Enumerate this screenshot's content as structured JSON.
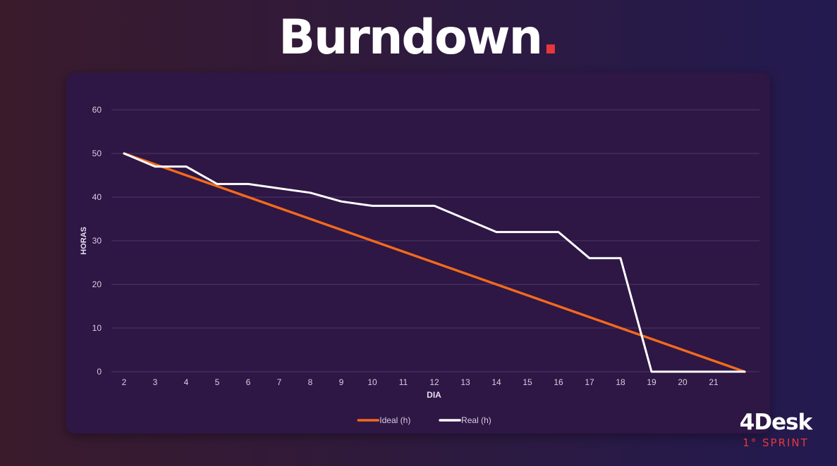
{
  "page": {
    "title": "Burndown",
    "title_dot": ".",
    "brand_name": "4Desk",
    "brand_subtitle": "1° SPRINT"
  },
  "chart_data": {
    "type": "line",
    "x": [
      2,
      3,
      4,
      5,
      6,
      7,
      8,
      9,
      10,
      11,
      12,
      13,
      14,
      15,
      16,
      17,
      18,
      19,
      20,
      21,
      22
    ],
    "x_tick_labels": [
      "2",
      "3",
      "4",
      "5",
      "6",
      "7",
      "8",
      "9",
      "10",
      "11",
      "12",
      "13",
      "14",
      "15",
      "16",
      "17",
      "18",
      "19",
      "20",
      "21"
    ],
    "series": [
      {
        "name": "Ideal (h)",
        "color": "#f26a1b",
        "values": [
          50,
          47.5,
          45,
          42.5,
          40,
          37.5,
          35,
          32.5,
          30,
          27.5,
          25,
          22.5,
          20,
          17.5,
          15,
          12.5,
          10,
          7.5,
          5,
          2.5,
          0
        ]
      },
      {
        "name": "Real (h)",
        "color": "#ffffff",
        "values": [
          50,
          47,
          47,
          43,
          43,
          42,
          41,
          39,
          38,
          38,
          38,
          35,
          32,
          32,
          32,
          26,
          26,
          0,
          0,
          0,
          0
        ]
      }
    ],
    "xlabel": "DIA",
    "ylabel": "HORAS",
    "yticks": [
      0,
      10,
      20,
      30,
      40,
      50,
      60
    ],
    "ylim": [
      0,
      60
    ],
    "xlim": [
      2,
      22
    ],
    "grid": true,
    "legend_position": "bottom"
  }
}
